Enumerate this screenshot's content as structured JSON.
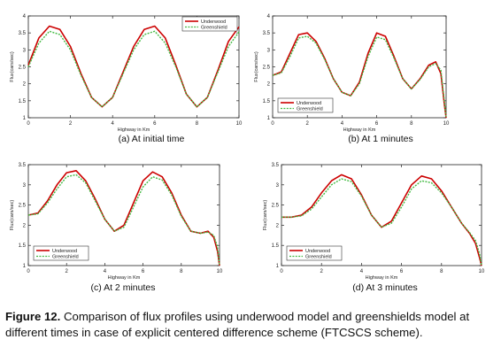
{
  "chart_data": [
    {
      "type": "line",
      "subtitle": "(a)   At initial time",
      "xlabel": "Highway in Km",
      "ylabel": "Flux(cars/sec)",
      "xlim": [
        0,
        10
      ],
      "ylim": [
        1,
        4
      ],
      "xticks": [
        "0",
        "2",
        "4",
        "6",
        "8",
        "10"
      ],
      "yticks": [
        "1",
        "1.5",
        "2",
        "2.5",
        "3",
        "3.5",
        "4"
      ],
      "legend_position": "top-right",
      "series": [
        {
          "name": "Underwood",
          "color": "#cc0000",
          "style": "solid",
          "x": [
            0,
            0.5,
            1,
            1.5,
            2,
            2.5,
            3,
            3.5,
            4,
            4.5,
            5,
            5.5,
            6,
            6.5,
            7,
            7.5,
            8,
            8.5,
            9,
            9.5,
            10
          ],
          "y": [
            2.55,
            3.35,
            3.7,
            3.6,
            3.1,
            2.3,
            1.6,
            1.32,
            1.6,
            2.35,
            3.1,
            3.6,
            3.7,
            3.35,
            2.55,
            1.7,
            1.32,
            1.6,
            2.4,
            3.25,
            3.68
          ]
        },
        {
          "name": "Greenshield",
          "color": "#44bb44",
          "style": "dashed",
          "x": [
            0,
            0.5,
            1,
            1.5,
            2,
            2.5,
            3,
            3.5,
            4,
            4.5,
            5,
            5.5,
            6,
            6.5,
            7,
            7.5,
            8,
            8.5,
            9,
            9.5,
            10
          ],
          "y": [
            2.5,
            3.2,
            3.55,
            3.45,
            3.0,
            2.25,
            1.6,
            1.32,
            1.6,
            2.3,
            3.0,
            3.45,
            3.55,
            3.2,
            2.5,
            1.7,
            1.32,
            1.6,
            2.35,
            3.1,
            3.53
          ]
        }
      ]
    },
    {
      "type": "line",
      "subtitle": "(b) At 1 minutes",
      "xlabel": "Highway in Km",
      "ylabel": "Flux(cars/sec)",
      "xlim": [
        0,
        10
      ],
      "ylim": [
        1,
        4
      ],
      "xticks": [
        "0",
        "2",
        "4",
        "6",
        "8",
        "10"
      ],
      "yticks": [
        "1",
        "1.5",
        "2",
        "2.5",
        "3",
        "3.5",
        "4"
      ],
      "legend_position": "bottom-left",
      "series": [
        {
          "name": "Underwood",
          "color": "#cc0000",
          "style": "solid",
          "x": [
            0,
            0.5,
            1,
            1.5,
            2,
            2.5,
            3,
            3.5,
            4,
            4.5,
            5,
            5.5,
            6,
            6.5,
            7,
            7.5,
            8,
            8.5,
            9,
            9.4,
            9.7,
            9.9,
            10
          ],
          "y": [
            2.25,
            2.35,
            2.9,
            3.45,
            3.5,
            3.25,
            2.75,
            2.15,
            1.75,
            1.65,
            2.05,
            2.9,
            3.5,
            3.4,
            2.8,
            2.15,
            1.85,
            2.15,
            2.55,
            2.65,
            2.3,
            1.4,
            1.0
          ]
        },
        {
          "name": "Greenshield",
          "color": "#44bb44",
          "style": "dashed",
          "x": [
            0,
            0.5,
            1,
            1.5,
            2,
            2.5,
            3,
            3.5,
            4,
            4.5,
            5,
            5.5,
            6,
            6.5,
            7,
            7.5,
            8,
            8.5,
            9,
            9.4,
            9.7,
            9.9,
            10
          ],
          "y": [
            2.25,
            2.32,
            2.8,
            3.35,
            3.4,
            3.2,
            2.72,
            2.15,
            1.75,
            1.65,
            2.0,
            2.8,
            3.38,
            3.3,
            2.75,
            2.15,
            1.85,
            2.13,
            2.5,
            2.6,
            2.4,
            1.5,
            1.0
          ]
        }
      ]
    },
    {
      "type": "line",
      "subtitle": "(c) At 2 minutes",
      "xlabel": "Highway in Km",
      "ylabel": "Flux(cars/sec)",
      "xlim": [
        0,
        10
      ],
      "ylim": [
        1,
        3.5
      ],
      "xticks": [
        "0",
        "2",
        "4",
        "6",
        "8",
        "10"
      ],
      "yticks": [
        "1",
        "1.5",
        "2",
        "2.5",
        "3",
        "3.5"
      ],
      "legend_position": "bottom-left",
      "series": [
        {
          "name": "Underwood",
          "color": "#cc0000",
          "style": "solid",
          "x": [
            0,
            0.5,
            1,
            1.5,
            2,
            2.5,
            3,
            3.5,
            4,
            4.5,
            5,
            5.5,
            6,
            6.5,
            7,
            7.5,
            8,
            8.5,
            9,
            9.4,
            9.7,
            9.9,
            10
          ],
          "y": [
            2.25,
            2.3,
            2.6,
            3.0,
            3.3,
            3.35,
            3.1,
            2.65,
            2.15,
            1.85,
            2.0,
            2.55,
            3.1,
            3.32,
            3.2,
            2.8,
            2.25,
            1.85,
            1.8,
            1.85,
            1.7,
            1.35,
            1.0
          ]
        },
        {
          "name": "Greenshield",
          "color": "#44bb44",
          "style": "dashed",
          "x": [
            0,
            0.5,
            1,
            1.5,
            2,
            2.5,
            3,
            3.5,
            4,
            4.5,
            5,
            5.5,
            6,
            6.5,
            7,
            7.5,
            8,
            8.5,
            9,
            9.4,
            9.7,
            9.9,
            10
          ],
          "y": [
            2.25,
            2.28,
            2.55,
            2.9,
            3.2,
            3.25,
            3.05,
            2.6,
            2.15,
            1.85,
            1.95,
            2.45,
            2.95,
            3.2,
            3.12,
            2.75,
            2.22,
            1.85,
            1.8,
            1.83,
            1.75,
            1.45,
            1.0
          ]
        }
      ]
    },
    {
      "type": "line",
      "subtitle": "(d) At 3 minutes",
      "xlabel": "Highway in Km",
      "ylabel": "Flux(cars/sec)",
      "xlim": [
        0,
        10
      ],
      "ylim": [
        1,
        3.5
      ],
      "xticks": [
        "0",
        "2",
        "4",
        "6",
        "8",
        "10"
      ],
      "yticks": [
        "1",
        "1.5",
        "2",
        "2.5",
        "3",
        "3.5"
      ],
      "legend_position": "bottom-left",
      "series": [
        {
          "name": "Underwood",
          "color": "#cc0000",
          "style": "solid",
          "x": [
            0,
            0.5,
            1,
            1.5,
            2,
            2.5,
            3,
            3.5,
            4,
            4.5,
            5,
            5.5,
            6,
            6.5,
            7,
            7.5,
            8,
            8.5,
            9,
            9.4,
            9.7,
            9.9,
            10
          ],
          "y": [
            2.2,
            2.2,
            2.25,
            2.45,
            2.8,
            3.1,
            3.25,
            3.15,
            2.75,
            2.25,
            1.95,
            2.1,
            2.55,
            3.0,
            3.22,
            3.15,
            2.85,
            2.45,
            2.05,
            1.8,
            1.55,
            1.2,
            1.0
          ]
        },
        {
          "name": "Greenshield",
          "color": "#44bb44",
          "style": "dashed",
          "x": [
            0,
            0.5,
            1,
            1.5,
            2,
            2.5,
            3,
            3.5,
            4,
            4.5,
            5,
            5.5,
            6,
            6.5,
            7,
            7.5,
            8,
            8.5,
            9,
            9.4,
            9.7,
            9.9,
            10
          ],
          "y": [
            2.2,
            2.2,
            2.23,
            2.4,
            2.7,
            3.0,
            3.15,
            3.08,
            2.72,
            2.25,
            1.95,
            2.05,
            2.45,
            2.9,
            3.1,
            3.05,
            2.8,
            2.45,
            2.05,
            1.82,
            1.62,
            1.3,
            1.0
          ]
        }
      ]
    }
  ],
  "caption": {
    "label": "Figure 12.",
    "text": " Comparison of flux profiles using underwood model and greenshields model at different times in case of explicit centered difference scheme (FTCSCS scheme)."
  }
}
